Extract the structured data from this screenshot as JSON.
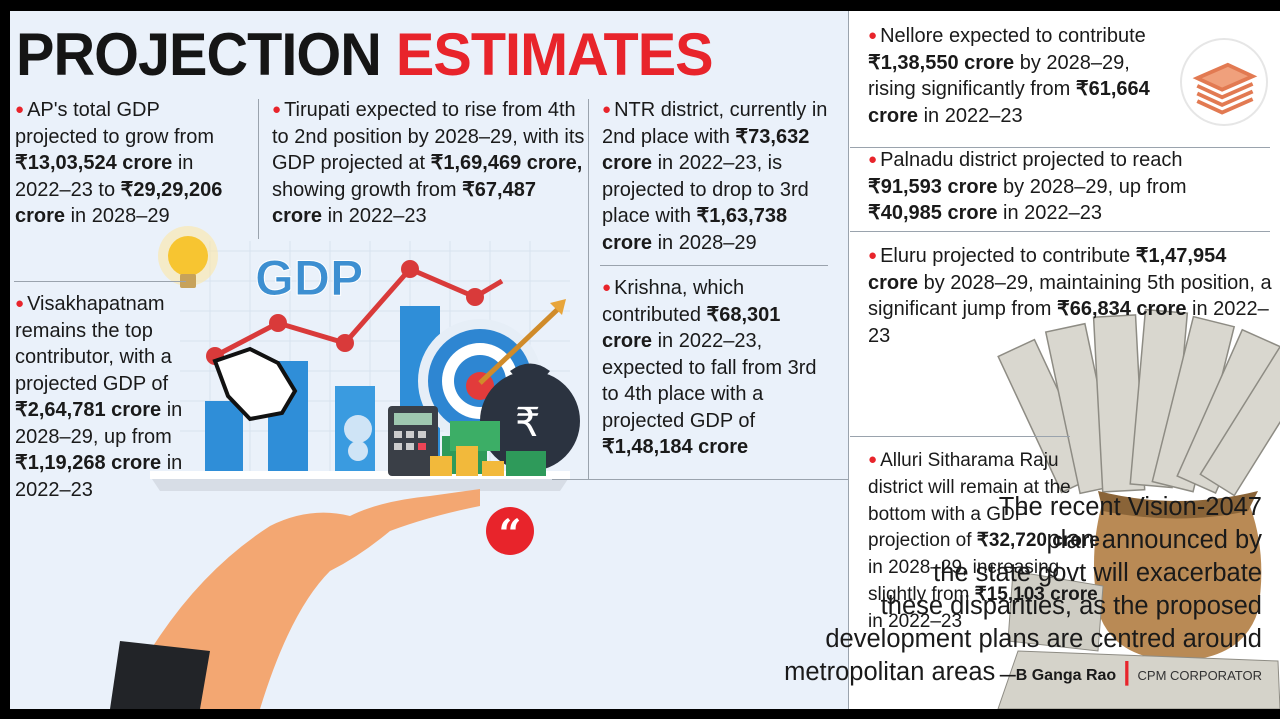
{
  "title": {
    "part1": "PROJECTION",
    "part2": "ESTIMATES"
  },
  "illustration": {
    "gdp_label": "GDP",
    "rupee_symbol": "₹"
  },
  "blocks": {
    "ap_total": {
      "t1": "AP's total GDP projected to grow from ",
      "b1": "₹13,03,524 crore",
      "t2": " in 2022–23 to ",
      "b2": "₹29,29,206 crore",
      "t3": " in 2028–29"
    },
    "tirupati": {
      "t1": "Tirupati expected to rise from 4th to 2nd position by 2028–29, with its GDP projected at ",
      "b1": "₹1,69,469 crore,",
      "t2": " showing growth from ",
      "b2": "₹67,487 crore",
      "t3": " in 2022–23"
    },
    "ntr": {
      "t1": "NTR district, currently in 2nd place with ",
      "b1": "₹73,632 crore",
      "t2": " in 2022–23, is projected to drop to 3rd place with ",
      "b2": "₹1,63,738 crore",
      "t3": " in 2028–29"
    },
    "krishna": {
      "t1": "Krishna, which contributed ",
      "b1": "₹68,301 crore",
      "t2": " in 2022–23, expected to fall from 3rd to 4th place with a projected GDP of ",
      "b2": "₹1,48,184 crore",
      "t3": ""
    },
    "visakhapatnam": {
      "t1": "Visakhapatnam remains the top contributor, with a projected GDP of ",
      "b1": "₹2,64,781 crore",
      "t2": " in 2028–29, up from ",
      "b2": "₹1,19,268 crore",
      "t3": " in 2022–23"
    },
    "nellore": {
      "t1": "Nellore expected to contribute ",
      "b1": "₹1,38,550 crore",
      "t2": " by 2028–29, rising significantly from ",
      "b2": "₹61,664 crore",
      "t3": " in 2022–23"
    },
    "palnadu": {
      "t1": "Palnadu district projected to reach ",
      "b1": "₹91,593 crore",
      "t2": " by 2028–29, up from ",
      "b2": "₹40,985 crore",
      "t3": " in 2022–23"
    },
    "eluru": {
      "t1": "Eluru projected to contribute ",
      "b1": "₹1,47,954 crore",
      "t2": " by 2028–29, maintaining 5th position, a significant jump from ",
      "b2": "₹66,834 crore",
      "t3": " in 2022–23"
    },
    "alluri": {
      "t1": "Alluri Sitharama Raju district will remain at the bottom with a GDP projection of ",
      "b1": "₹32,720 crore",
      "t2": " in 2028–29, increasing slightly from ",
      "b2": "₹15,103 crore",
      "t3": " in 2022–23"
    }
  },
  "quote": {
    "mark": "“",
    "lines": [
      "The recent Vision-2047",
      "plan announced by",
      "the state govt will exacerbate",
      "these disparities, as the proposed",
      "development plans are centred around",
      "metropolitan areas"
    ],
    "dash": " —",
    "author": "B Ganga Rao",
    "separator": " | ",
    "role": "CPM CORPORATOR"
  },
  "colors": {
    "accent_red": "#e8242b",
    "title_dark": "#151515",
    "panel_bg": "#eaf1fa"
  },
  "icons": [
    "bulb-icon",
    "gdp-chart-icon",
    "target-icon",
    "rupee-bag-icon",
    "calculator-icon",
    "hand-cursor-icon",
    "money-bundle-icon",
    "cash-sack-icon"
  ]
}
